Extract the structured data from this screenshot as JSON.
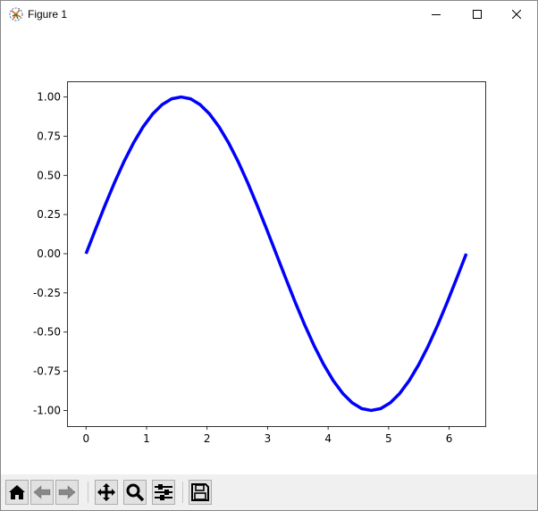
{
  "window": {
    "title": "Figure 1",
    "controls": [
      "minimize",
      "maximize",
      "close"
    ]
  },
  "toolbar": {
    "buttons": [
      {
        "name": "home",
        "icon": "home-icon"
      },
      {
        "name": "back",
        "icon": "arrow-left-icon"
      },
      {
        "name": "forward",
        "icon": "arrow-right-icon"
      },
      {
        "name": "pan",
        "icon": "move-icon"
      },
      {
        "name": "zoom",
        "icon": "magnifier-icon"
      },
      {
        "name": "configure-subplots",
        "icon": "sliders-icon"
      },
      {
        "name": "save",
        "icon": "floppy-icon"
      }
    ]
  },
  "chart_data": {
    "type": "line",
    "title": "",
    "xlabel": "",
    "ylabel": "",
    "xlim": [
      -0.314,
      6.597
    ],
    "ylim": [
      -1.1,
      1.1
    ],
    "xticks": [
      "0",
      "1",
      "2",
      "3",
      "4",
      "5",
      "6"
    ],
    "yticks": [
      "-1.00",
      "-0.75",
      "-0.50",
      "-0.25",
      "0.00",
      "0.25",
      "0.50",
      "0.75",
      "1.00"
    ],
    "grid": false,
    "color": "#0000ff",
    "x": [
      0.0,
      0.157,
      0.314,
      0.471,
      0.628,
      0.785,
      0.942,
      1.1,
      1.257,
      1.414,
      1.571,
      1.728,
      1.885,
      2.042,
      2.199,
      2.356,
      2.513,
      2.67,
      2.827,
      2.985,
      3.142,
      3.299,
      3.456,
      3.613,
      3.77,
      3.927,
      4.084,
      4.241,
      4.398,
      4.555,
      4.712,
      4.869,
      5.027,
      5.184,
      5.341,
      5.498,
      5.655,
      5.812,
      5.969,
      6.126,
      6.283
    ],
    "y": [
      0.0,
      0.156,
      0.309,
      0.454,
      0.588,
      0.707,
      0.809,
      0.891,
      0.951,
      0.988,
      1.0,
      0.988,
      0.951,
      0.891,
      0.809,
      0.707,
      0.588,
      0.454,
      0.309,
      0.156,
      0.0,
      -0.156,
      -0.309,
      -0.454,
      -0.588,
      -0.707,
      -0.809,
      -0.891,
      -0.951,
      -0.988,
      -1.0,
      -0.988,
      -0.951,
      -0.891,
      -0.809,
      -0.707,
      -0.588,
      -0.454,
      -0.309,
      -0.156,
      0.0
    ]
  }
}
